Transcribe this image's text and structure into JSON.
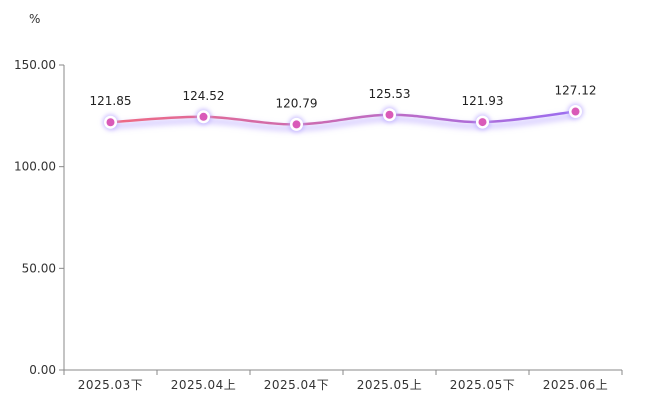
{
  "chart_data": {
    "type": "line",
    "unit": "%",
    "categories": [
      "2025.03下",
      "2025.04上",
      "2025.04下",
      "2025.05上",
      "2025.05下",
      "2025.06上"
    ],
    "series": [
      {
        "values": [
          121.85,
          124.52,
          120.79,
          125.53,
          121.93,
          127.12
        ]
      }
    ],
    "data_labels": [
      "121.85",
      "124.52",
      "120.79",
      "125.53",
      "121.93",
      "127.12"
    ],
    "y_ticks": [
      "0.00",
      "50.00",
      "100.00",
      "150.00"
    ],
    "y_tick_values": [
      0,
      50,
      100,
      150
    ],
    "ylim": [
      0,
      150
    ],
    "grid": false,
    "line_gradient": [
      "#f06a82",
      "#9b6cf0"
    ],
    "marker_color": "#d95ab8",
    "glow_color": "#b9a8ff"
  }
}
